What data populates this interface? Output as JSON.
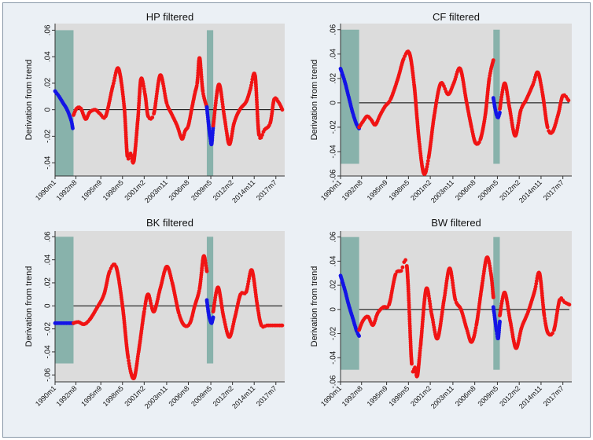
{
  "colors": {
    "background": "#ebf0f5",
    "plot_area": "#dcdcdc",
    "shade": "#88b2ab",
    "blue": "#1414e6",
    "red": "#f01414",
    "zero_line": "#000000"
  },
  "chart_data": [
    {
      "type": "line",
      "title": "HP filtered",
      "xlabel": "",
      "ylabel": "Derivation from trend",
      "ylim": [
        -0.05,
        0.065
      ],
      "yticks": [
        -0.04,
        -0.02,
        0,
        0.02,
        0.04,
        0.06
      ],
      "ytick_labels": [
        "-.04",
        "-.02",
        "0",
        ".02",
        ".04",
        ".06"
      ],
      "xlim": [
        1990.0,
        2018.6
      ],
      "xticks": [
        1990.0,
        1992.6,
        1995.7,
        1998.4,
        2001.1,
        2003.9,
        2006.6,
        2009.4,
        2012.1,
        2014.8,
        2017.5
      ],
      "xtick_labels": [
        "1990m1",
        "1992m8",
        "1995m9",
        "1998m5",
        "2001m2",
        "2003m11",
        "2006m8",
        "2009m5",
        "2012m2",
        "2014m11",
        "2017m7"
      ],
      "shaded_periods": [
        [
          1990.0,
          1992.3
        ],
        [
          2008.9,
          2009.7
        ]
      ],
      "shade_range": [
        -0.05,
        0.06
      ],
      "series": [
        {
          "name": "blue",
          "color": "blue",
          "x": [
            1990.0,
            1990.5,
            1991.0,
            1991.5,
            1992.0,
            1992.2
          ],
          "y": [
            0.014,
            0.01,
            0.005,
            0.0,
            -0.008,
            -0.014
          ]
        },
        {
          "name": "red",
          "color": "red",
          "x": [
            1992.3,
            1992.7,
            1993.2,
            1993.8,
            1994.3,
            1995.0,
            1995.6,
            1996.3,
            1997.2,
            1997.9,
            1998.6,
            1999.0,
            1999.4,
            1999.8,
            2000.3,
            2000.7,
            2001.2,
            2001.6,
            2002.3,
            2003.1,
            2003.9,
            2004.5,
            2005.2,
            2005.8,
            2006.2,
            2006.6,
            2007.0,
            2007.4,
            2007.7,
            2008.0,
            2008.4,
            2008.9
          ],
          "y": [
            -0.004,
            0.001,
            0.001,
            -0.007,
            -0.002,
            0.0,
            -0.003,
            -0.005,
            0.018,
            0.031,
            0.003,
            -0.035,
            -0.033,
            -0.039,
            -0.008,
            0.023,
            0.012,
            -0.005,
            -0.003,
            0.026,
            0.005,
            -0.003,
            -0.012,
            -0.022,
            -0.016,
            -0.012,
            0.0,
            0.012,
            0.02,
            0.039,
            0.014,
            0.002
          ]
        },
        {
          "name": "blue",
          "color": "blue",
          "x": [
            2008.9,
            2009.1,
            2009.3,
            2009.5,
            2009.7
          ],
          "y": [
            0.002,
            -0.01,
            -0.02,
            -0.026,
            -0.012
          ]
        },
        {
          "name": "red",
          "color": "red",
          "x": [
            2009.7,
            2010.4,
            2011.1,
            2011.7,
            2012.3,
            2013.0,
            2013.8,
            2014.3,
            2014.9,
            2015.4,
            2016.1,
            2016.8,
            2017.3,
            2017.9,
            2018.3
          ],
          "y": [
            -0.012,
            0.019,
            -0.006,
            -0.026,
            -0.01,
            0.0,
            0.006,
            0.015,
            0.026,
            -0.019,
            -0.015,
            -0.01,
            0.008,
            0.005,
            0.0
          ]
        }
      ]
    },
    {
      "type": "line",
      "title": "CF filtered",
      "xlabel": "",
      "ylabel": "Derivation from trend",
      "ylim": [
        -0.06,
        0.065
      ],
      "yticks": [
        -0.06,
        -0.04,
        -0.02,
        0,
        0.02,
        0.04,
        0.06
      ],
      "ytick_labels": [
        "-.06",
        "-.04",
        "-.02",
        "0",
        ".02",
        ".04",
        ".06"
      ],
      "xlim": [
        1990.0,
        2018.6
      ],
      "xticks": [
        1990.0,
        1992.6,
        1995.7,
        1998.4,
        2001.1,
        2003.9,
        2006.6,
        2009.4,
        2012.1,
        2014.8,
        2017.5
      ],
      "xtick_labels": [
        "1990m1",
        "1992m8",
        "1995m9",
        "1998m5",
        "2001m2",
        "2003m11",
        "2006m8",
        "2009m5",
        "2012m2",
        "2014m11",
        "2017m7"
      ],
      "shaded_periods": [
        [
          1990.0,
          1992.3
        ],
        [
          2008.9,
          2009.7
        ]
      ],
      "shade_range": [
        -0.05,
        0.06
      ],
      "series": [
        {
          "name": "blue",
          "color": "blue",
          "x": [
            1990.0,
            1990.5,
            1991.0,
            1991.5,
            1992.0,
            1992.3
          ],
          "y": [
            0.028,
            0.018,
            0.005,
            -0.008,
            -0.018,
            -0.021
          ]
        },
        {
          "name": "red",
          "color": "red",
          "x": [
            1992.3,
            1992.8,
            1993.3,
            1993.8,
            1994.3,
            1994.9,
            1995.5,
            1996.2,
            1997.1,
            1997.8,
            1998.5,
            1999.1,
            1999.7,
            2000.3,
            2000.9,
            2001.6,
            2002.4,
            2003.3,
            2004.0,
            2004.8,
            2005.6,
            2006.2,
            2006.7,
            2007.3,
            2007.9,
            2008.4,
            2008.9
          ],
          "y": [
            -0.02,
            -0.015,
            -0.011,
            -0.014,
            -0.018,
            -0.01,
            -0.003,
            0.003,
            0.02,
            0.036,
            0.041,
            0.015,
            -0.03,
            -0.058,
            -0.045,
            -0.01,
            0.016,
            0.007,
            0.016,
            0.028,
            0.0,
            -0.02,
            -0.033,
            -0.03,
            -0.01,
            0.02,
            0.035
          ]
        },
        {
          "name": "blue",
          "color": "blue",
          "x": [
            2008.9,
            2009.1,
            2009.3,
            2009.5,
            2009.7
          ],
          "y": [
            0.004,
            -0.004,
            -0.01,
            -0.012,
            -0.008
          ]
        },
        {
          "name": "red",
          "color": "red",
          "x": [
            2009.7,
            2010.3,
            2010.9,
            2011.6,
            2012.3,
            2013.0,
            2013.8,
            2014.4,
            2015.0,
            2015.6,
            2016.2,
            2016.9,
            2017.5,
            2018.2
          ],
          "y": [
            -0.005,
            0.016,
            -0.004,
            -0.027,
            -0.006,
            0.003,
            0.015,
            0.025,
            0.007,
            -0.02,
            -0.024,
            -0.01,
            0.006,
            0.002
          ]
        }
      ]
    },
    {
      "type": "line",
      "title": "BK filtered",
      "xlabel": "",
      "ylabel": "Derivation from trend",
      "ylim": [
        -0.066,
        0.065
      ],
      "yticks": [
        -0.06,
        -0.04,
        -0.02,
        0,
        0.02,
        0.04,
        0.06
      ],
      "ytick_labels": [
        "-.06",
        "-.04",
        "-.02",
        "0",
        ".02",
        ".04",
        ".06"
      ],
      "xlim": [
        1990.0,
        2018.6
      ],
      "xticks": [
        1990.0,
        1992.6,
        1995.7,
        1998.4,
        2001.1,
        2003.9,
        2006.6,
        2009.4,
        2012.1,
        2014.8,
        2017.5
      ],
      "xtick_labels": [
        "1990m1",
        "1992m8",
        "1995m9",
        "1998m5",
        "2001m2",
        "2003m11",
        "2006m8",
        "2009m5",
        "2012m2",
        "2014m11",
        "2017m7"
      ],
      "shaded_periods": [
        [
          1990.0,
          1992.3
        ],
        [
          2008.9,
          2009.7
        ]
      ],
      "shade_range": [
        -0.05,
        0.06
      ],
      "series": [
        {
          "name": "blue",
          "color": "blue",
          "x": [
            1990.0,
            1990.6,
            1991.2,
            1991.8,
            1992.3
          ],
          "y": [
            -0.015,
            -0.015,
            -0.015,
            -0.015,
            -0.015
          ]
        },
        {
          "name": "red",
          "color": "red",
          "x": [
            1992.3,
            1992.9,
            1993.6,
            1994.3,
            1995.2,
            1996.1,
            1996.8,
            1997.6,
            1998.4,
            1999.1,
            1999.8,
            2000.4,
            2001.1,
            2001.6,
            2002.3,
            2003.1,
            2003.9,
            2004.6,
            2005.4,
            2006.1,
            2006.8,
            2007.4,
            2008.0,
            2008.5,
            2008.9
          ],
          "y": [
            -0.015,
            -0.014,
            -0.016,
            -0.012,
            -0.002,
            0.01,
            0.03,
            0.034,
            0.0,
            -0.045,
            -0.063,
            -0.04,
            -0.005,
            0.01,
            -0.005,
            0.015,
            0.034,
            0.02,
            -0.006,
            -0.017,
            -0.015,
            0.0,
            0.015,
            0.043,
            0.03
          ]
        },
        {
          "name": "blue",
          "color": "blue",
          "x": [
            2008.9,
            2009.1,
            2009.3,
            2009.5,
            2009.7
          ],
          "y": [
            0.005,
            -0.006,
            -0.012,
            -0.015,
            -0.01
          ]
        },
        {
          "name": "red",
          "color": "red",
          "x": [
            2009.7,
            2010.3,
            2011.0,
            2011.7,
            2012.4,
            2013.1,
            2013.8,
            2014.5,
            2015.2,
            2015.7,
            2016.4,
            2017.3,
            2018.3
          ],
          "y": [
            -0.005,
            0.016,
            -0.01,
            -0.027,
            -0.01,
            0.01,
            0.012,
            0.031,
            0.0,
            -0.017,
            -0.017,
            -0.017,
            -0.017
          ]
        }
      ]
    },
    {
      "type": "line",
      "title": "BW filtered",
      "xlabel": "",
      "ylabel": "Derivation from trend",
      "ylim": [
        -0.06,
        0.065
      ],
      "yticks": [
        -0.06,
        -0.04,
        -0.02,
        0,
        0.02,
        0.04,
        0.06
      ],
      "ytick_labels": [
        "-.06",
        "-.04",
        "-.02",
        "0",
        ".02",
        ".04",
        ".06"
      ],
      "xlim": [
        1990.0,
        2018.6
      ],
      "xticks": [
        1990.0,
        1992.6,
        1995.7,
        1998.4,
        2001.1,
        2003.9,
        2006.6,
        2009.4,
        2012.1,
        2014.8,
        2017.5
      ],
      "xtick_labels": [
        "1990m1",
        "1992m8",
        "1995m9",
        "1998m5",
        "2001m2",
        "2003m11",
        "2006m8",
        "2009m5",
        "2012m2",
        "2014m11",
        "2017m7"
      ],
      "shaded_periods": [
        [
          1990.0,
          1992.3
        ],
        [
          2008.9,
          2009.7
        ]
      ],
      "shade_range": [
        -0.05,
        0.06
      ],
      "series": [
        {
          "name": "blue",
          "color": "blue",
          "x": [
            1990.0,
            1990.5,
            1991.0,
            1991.5,
            1992.0,
            1992.3
          ],
          "y": [
            0.028,
            0.017,
            0.004,
            -0.007,
            -0.018,
            -0.022
          ]
        },
        {
          "name": "red",
          "color": "red",
          "x": [
            1992.3,
            1992.8,
            1993.4,
            1994.0,
            1994.6,
            1995.3,
            1996.0,
            1996.8,
            1997.5,
            1998.2,
            1998.8,
            1999.2,
            1999.5,
            1999.9,
            2000.6,
            2001.3,
            2002.0,
            2002.8,
            2003.5,
            2004.2,
            2004.9,
            2005.6,
            2006.2,
            2006.8,
            2007.5,
            2008.1,
            2008.6,
            2008.9
          ],
          "y": [
            -0.017,
            -0.009,
            -0.006,
            -0.013,
            -0.003,
            0.002,
            0.004,
            0.029,
            0.032,
            0.036,
            -0.045,
            -0.048,
            -0.055,
            -0.03,
            0.017,
            -0.005,
            -0.024,
            0.008,
            0.034,
            0.008,
            0.0,
            -0.016,
            -0.027,
            -0.013,
            0.02,
            0.043,
            0.03,
            0.01
          ]
        },
        {
          "name": "blue",
          "color": "blue",
          "x": [
            2008.9,
            2009.1,
            2009.3,
            2009.5,
            2009.7
          ],
          "y": [
            0.002,
            -0.008,
            -0.018,
            -0.024,
            -0.01
          ]
        },
        {
          "name": "red",
          "color": "red",
          "x": [
            2009.7,
            2010.3,
            2011.0,
            2011.7,
            2012.4,
            2013.2,
            2014.0,
            2014.6,
            2015.2,
            2015.7,
            2016.4,
            2017.1,
            2017.7,
            2018.3
          ],
          "y": [
            -0.005,
            0.014,
            -0.01,
            -0.032,
            -0.015,
            -0.002,
            0.015,
            0.03,
            -0.005,
            -0.02,
            -0.017,
            0.008,
            0.006,
            0.004
          ]
        }
      ]
    }
  ]
}
